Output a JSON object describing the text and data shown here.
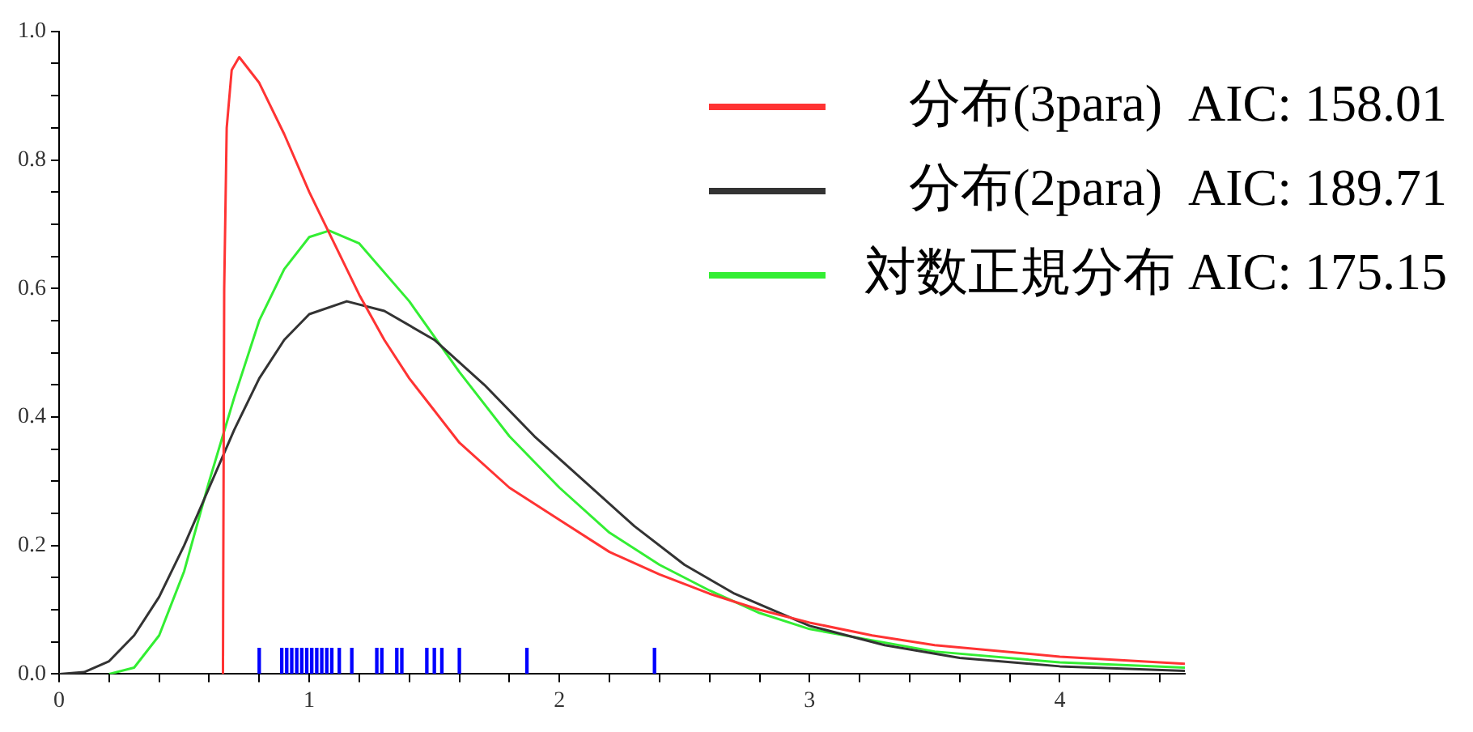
{
  "chart_data": {
    "type": "line",
    "legend": "top right",
    "tick_labels": true,
    "xlim": [
      0,
      4.5
    ],
    "ylim": [
      0,
      1.0
    ],
    "xticks": [
      0,
      {
        "value": 0.2,
        "label": null
      },
      {
        "value": 0.4,
        "label": null
      },
      {
        "value": 0.6,
        "label": null
      },
      {
        "value": 0.8,
        "label": null
      },
      1,
      {
        "value": 1.2,
        "label": null
      },
      {
        "value": 1.4,
        "label": null
      },
      {
        "value": 1.6,
        "label": null
      },
      {
        "value": 1.8,
        "label": null
      },
      2,
      {
        "value": 2.2,
        "label": null
      },
      {
        "value": 2.4,
        "label": null
      },
      {
        "value": 2.6,
        "label": null
      },
      {
        "value": 2.8,
        "label": null
      },
      3,
      {
        "value": 3.2,
        "label": null
      },
      {
        "value": 3.4,
        "label": null
      },
      {
        "value": 3.6,
        "label": null
      },
      {
        "value": 3.8,
        "label": null
      },
      4,
      {
        "value": 4.2,
        "label": null
      },
      {
        "value": 4.4,
        "label": null
      }
    ],
    "yticks": [
      {
        "value": 0,
        "label": "0.0"
      },
      {
        "value": 0.05,
        "label": null
      },
      {
        "value": 0.1,
        "label": null
      },
      {
        "value": 0.15,
        "label": null
      },
      0.2,
      {
        "value": 0.25,
        "label": null
      },
      {
        "value": 0.3,
        "label": null
      },
      {
        "value": 0.35,
        "label": null
      },
      0.4,
      {
        "value": 0.45,
        "label": null
      },
      {
        "value": 0.5,
        "label": null
      },
      {
        "value": 0.55,
        "label": null
      },
      0.6,
      {
        "value": 0.65,
        "label": null
      },
      {
        "value": 0.7,
        "label": null
      },
      {
        "value": 0.75,
        "label": null
      },
      0.8,
      {
        "value": 0.85,
        "label": null
      },
      {
        "value": 0.9,
        "label": null
      },
      {
        "value": 0.95,
        "label": null
      },
      {
        "value": 1,
        "label": "1.0"
      }
    ],
    "line_style": "solid",
    "marker": "none",
    "grid": false,
    "series": [
      {
        "name": "分布(3para)  AIC: 158.01",
        "color": "#ff3333",
        "x": [
          0.655,
          0.66,
          0.67,
          0.69,
          0.72,
          0.8,
          0.9,
          1.0,
          1.1,
          1.2,
          1.3,
          1.4,
          1.5,
          1.6,
          1.8,
          2.0,
          2.2,
          2.4,
          2.6,
          2.8,
          3.0,
          3.25,
          3.5,
          4.0,
          4.5
        ],
        "values": [
          0,
          0.6,
          0.85,
          0.94,
          0.96,
          0.92,
          0.84,
          0.75,
          0.67,
          0.59,
          0.52,
          0.46,
          0.41,
          0.36,
          0.29,
          0.24,
          0.19,
          0.155,
          0.125,
          0.1,
          0.08,
          0.06,
          0.045,
          0.027,
          0.016
        ]
      },
      {
        "name": "分布(2para)  AIC: 189.71",
        "color": "#333333",
        "x": [
          0,
          0.1,
          0.2,
          0.3,
          0.4,
          0.5,
          0.6,
          0.7,
          0.8,
          0.9,
          1.0,
          1.15,
          1.3,
          1.5,
          1.7,
          1.9,
          2.1,
          2.3,
          2.5,
          2.7,
          3.0,
          3.3,
          3.6,
          4.0,
          4.5
        ],
        "values": [
          0,
          0.003,
          0.02,
          0.06,
          0.12,
          0.2,
          0.29,
          0.38,
          0.46,
          0.52,
          0.56,
          0.58,
          0.565,
          0.52,
          0.45,
          0.37,
          0.3,
          0.23,
          0.17,
          0.125,
          0.075,
          0.045,
          0.025,
          0.012,
          0.005
        ]
      },
      {
        "name": "対数正規分布 AIC: 175.15",
        "color": "#33ee33",
        "x": [
          0.2,
          0.3,
          0.4,
          0.5,
          0.6,
          0.7,
          0.8,
          0.9,
          1.0,
          1.08,
          1.2,
          1.4,
          1.6,
          1.8,
          2.0,
          2.2,
          2.4,
          2.6,
          2.8,
          3.0,
          3.5,
          4.0,
          4.5
        ],
        "values": [
          0,
          0.01,
          0.06,
          0.16,
          0.3,
          0.43,
          0.55,
          0.63,
          0.68,
          0.69,
          0.67,
          0.58,
          0.47,
          0.37,
          0.29,
          0.22,
          0.17,
          0.13,
          0.095,
          0.07,
          0.035,
          0.018,
          0.01
        ]
      },
      {
        "type": "bar",
        "color": "#0000ff",
        "x": [
          0.8,
          0.89,
          0.91,
          0.93,
          0.95,
          0.97,
          0.99,
          1.01,
          1.03,
          1.05,
          1.07,
          1.09,
          1.12,
          1.17,
          1.27,
          1.29,
          1.35,
          1.37,
          1.47,
          1.5,
          1.53,
          1.6,
          1.87,
          2.38
        ],
        "values": [
          0.04,
          0.04,
          0.04,
          0.04,
          0.04,
          0.04,
          0.04,
          0.04,
          0.04,
          0.04,
          0.04,
          0.04,
          0.04,
          0.04,
          0.04,
          0.04,
          0.04,
          0.04,
          0.04,
          0.04,
          0.04,
          0.04,
          0.04,
          0.04
        ]
      }
    ]
  }
}
